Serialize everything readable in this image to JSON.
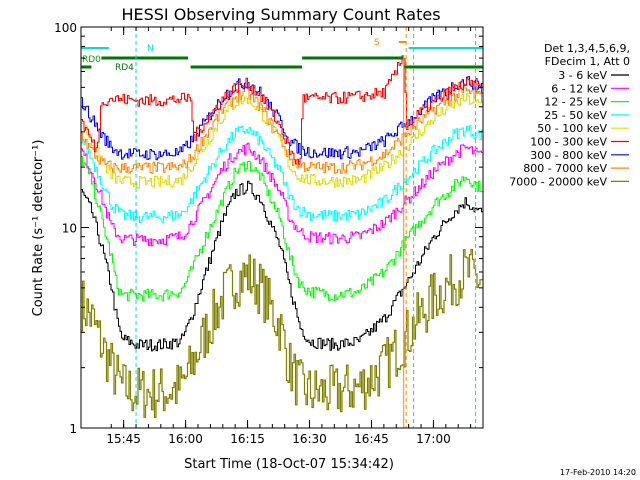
{
  "chart_data": {
    "type": "line",
    "title": "HESSI Observing Summary Count Rates",
    "xlabel": "Start Time (18-Oct-07 15:34:42)",
    "ylabel": "Count Rate (s⁻¹ detector⁻¹)",
    "x_unit": "UT minutes",
    "xlim": [
      15.5779,
      17.2
    ],
    "ylim": [
      1,
      100
    ],
    "y_scale": "log",
    "x_ticks": [
      {
        "x": 15.75,
        "label": "15:45"
      },
      {
        "x": 16.0,
        "label": "16:00"
      },
      {
        "x": 16.25,
        "label": "16:15"
      },
      {
        "x": 16.5,
        "label": "16:30"
      },
      {
        "x": 16.75,
        "label": "16:45"
      },
      {
        "x": 17.0,
        "label": "17:00"
      }
    ],
    "y_ticks": [
      {
        "y": 1,
        "label": "1"
      },
      {
        "y": 10,
        "label": "10"
      },
      {
        "y": 100,
        "label": "100"
      }
    ],
    "legend_header": [
      "Det 1,3,4,5,6,9,",
      "FDecim 1, Att 0"
    ],
    "legend_placement": "right",
    "timestamp": "17-Feb-2010 14:20",
    "flags": [
      {
        "label": "RD0",
        "color": "#00aa00"
      },
      {
        "label": "RD4",
        "color": "#007700"
      },
      {
        "label": "N",
        "color": "#00dddd"
      },
      {
        "label": "S",
        "color": "#ff8800"
      }
    ],
    "series": [
      {
        "name": "3 - 6 keV",
        "color": "#000000",
        "points": [
          [
            15.58,
            15
          ],
          [
            15.62,
            12
          ],
          [
            15.66,
            8
          ],
          [
            15.7,
            5
          ],
          [
            15.72,
            3.5
          ],
          [
            15.74,
            2.8
          ],
          [
            15.8,
            2.6
          ],
          [
            15.9,
            2.6
          ],
          [
            15.98,
            2.7
          ],
          [
            16.02,
            3.5
          ],
          [
            16.08,
            6
          ],
          [
            16.15,
            11
          ],
          [
            16.2,
            15
          ],
          [
            16.25,
            16
          ],
          [
            16.3,
            14
          ],
          [
            16.38,
            8
          ],
          [
            16.42,
            5
          ],
          [
            16.46,
            3.2
          ],
          [
            16.5,
            2.7
          ],
          [
            16.6,
            2.6
          ],
          [
            16.7,
            2.7
          ],
          [
            16.8,
            3.5
          ],
          [
            16.9,
            5.5
          ],
          [
            17.0,
            9
          ],
          [
            17.08,
            12
          ],
          [
            17.13,
            13.5
          ],
          [
            17.18,
            12
          ]
        ]
      },
      {
        "name": "6 - 12 keV",
        "color": "#ff00ff",
        "points": [
          [
            15.58,
            24
          ],
          [
            15.62,
            19
          ],
          [
            15.66,
            14
          ],
          [
            15.7,
            10
          ],
          [
            15.74,
            8.8
          ],
          [
            15.8,
            8.7
          ],
          [
            15.9,
            8.7
          ],
          [
            15.98,
            9
          ],
          [
            16.02,
            10.5
          ],
          [
            16.08,
            14
          ],
          [
            16.15,
            20
          ],
          [
            16.2,
            23.5
          ],
          [
            16.25,
            25
          ],
          [
            16.3,
            22
          ],
          [
            16.38,
            15
          ],
          [
            16.42,
            11
          ],
          [
            16.46,
            9.5
          ],
          [
            16.5,
            9
          ],
          [
            16.6,
            8.8
          ],
          [
            16.7,
            9
          ],
          [
            16.8,
            10.5
          ],
          [
            16.9,
            14
          ],
          [
            17.0,
            19
          ],
          [
            17.08,
            23
          ],
          [
            17.13,
            25
          ],
          [
            17.18,
            23
          ]
        ]
      },
      {
        "name": "12 - 25 keV",
        "color": "#00ff00",
        "points": [
          [
            15.58,
            22
          ],
          [
            15.62,
            17
          ],
          [
            15.66,
            11
          ],
          [
            15.7,
            7
          ],
          [
            15.72,
            5.2
          ],
          [
            15.74,
            4.6
          ],
          [
            15.8,
            4.6
          ],
          [
            15.9,
            4.6
          ],
          [
            15.98,
            4.8
          ],
          [
            16.02,
            6
          ],
          [
            16.08,
            9
          ],
          [
            16.15,
            14
          ],
          [
            16.2,
            19
          ],
          [
            16.25,
            21
          ],
          [
            16.3,
            18
          ],
          [
            16.38,
            11
          ],
          [
            16.42,
            7
          ],
          [
            16.46,
            5.2
          ],
          [
            16.5,
            4.8
          ],
          [
            16.6,
            4.6
          ],
          [
            16.7,
            4.8
          ],
          [
            16.8,
            6
          ],
          [
            16.9,
            9
          ],
          [
            17.0,
            13
          ],
          [
            17.08,
            16
          ],
          [
            17.13,
            18
          ],
          [
            17.18,
            16
          ]
        ]
      },
      {
        "name": "25 - 50 keV",
        "color": "#00ffff",
        "points": [
          [
            15.58,
            28
          ],
          [
            15.62,
            22
          ],
          [
            15.66,
            17
          ],
          [
            15.7,
            13
          ],
          [
            15.74,
            11.5
          ],
          [
            15.8,
            11.3
          ],
          [
            15.9,
            11.3
          ],
          [
            15.98,
            11.6
          ],
          [
            16.02,
            13.5
          ],
          [
            16.08,
            18
          ],
          [
            16.15,
            25
          ],
          [
            16.2,
            29.5
          ],
          [
            16.25,
            31
          ],
          [
            16.3,
            27
          ],
          [
            16.38,
            19
          ],
          [
            16.42,
            14
          ],
          [
            16.46,
            12.2
          ],
          [
            16.5,
            11.6
          ],
          [
            16.6,
            11.4
          ],
          [
            16.7,
            11.6
          ],
          [
            16.8,
            13.5
          ],
          [
            16.9,
            18
          ],
          [
            17.0,
            24
          ],
          [
            17.08,
            29
          ],
          [
            17.13,
            31
          ],
          [
            17.18,
            29
          ]
        ]
      },
      {
        "name": "50 - 100 keV",
        "color": "#dddd00",
        "points": [
          [
            15.58,
            34
          ],
          [
            15.62,
            27
          ],
          [
            15.66,
            22
          ],
          [
            15.7,
            18
          ],
          [
            15.74,
            17
          ],
          [
            15.8,
            16.8
          ],
          [
            15.9,
            16.8
          ],
          [
            15.98,
            17.2
          ],
          [
            16.02,
            20
          ],
          [
            16.08,
            26
          ],
          [
            16.15,
            36
          ],
          [
            16.2,
            42
          ],
          [
            16.25,
            44
          ],
          [
            16.3,
            38
          ],
          [
            16.38,
            27
          ],
          [
            16.42,
            20
          ],
          [
            16.46,
            17.8
          ],
          [
            16.5,
            17.2
          ],
          [
            16.6,
            17
          ],
          [
            16.7,
            17.2
          ],
          [
            16.8,
            20
          ],
          [
            16.9,
            26
          ],
          [
            17.0,
            35
          ],
          [
            17.08,
            41
          ],
          [
            17.13,
            44
          ],
          [
            17.18,
            41
          ]
        ]
      },
      {
        "name": "100 - 300 keV",
        "color": "#ff0000",
        "points": [
          [
            15.58,
            34
          ],
          [
            15.64,
            24
          ],
          [
            15.66,
            43
          ],
          [
            15.7,
            44
          ],
          [
            15.8,
            43
          ],
          [
            15.9,
            43
          ],
          [
            16.02,
            44
          ],
          [
            16.03,
            28
          ],
          [
            16.08,
            34
          ],
          [
            16.15,
            44
          ],
          [
            16.2,
            50
          ],
          [
            16.25,
            52
          ],
          [
            16.3,
            46
          ],
          [
            16.38,
            32
          ],
          [
            16.42,
            24
          ],
          [
            16.46,
            20
          ],
          [
            16.47,
            44
          ],
          [
            16.5,
            44
          ],
          [
            16.6,
            44
          ],
          [
            16.7,
            45
          ],
          [
            16.8,
            47
          ],
          [
            16.85,
            60
          ],
          [
            16.88,
            74
          ],
          [
            16.89,
            32
          ],
          [
            16.95,
            38
          ],
          [
            17.0,
            42
          ],
          [
            17.08,
            49
          ],
          [
            17.13,
            52
          ],
          [
            17.18,
            50
          ]
        ]
      },
      {
        "name": "300 - 800 keV",
        "color": "#0000ff",
        "points": [
          [
            15.58,
            42
          ],
          [
            15.62,
            35
          ],
          [
            15.66,
            29
          ],
          [
            15.7,
            25
          ],
          [
            15.74,
            23.5
          ],
          [
            15.8,
            23.2
          ],
          [
            15.9,
            23.2
          ],
          [
            15.98,
            23.6
          ],
          [
            16.02,
            27
          ],
          [
            16.08,
            34
          ],
          [
            16.15,
            45
          ],
          [
            16.2,
            51
          ],
          [
            16.25,
            53
          ],
          [
            16.3,
            47
          ],
          [
            16.38,
            34
          ],
          [
            16.42,
            27
          ],
          [
            16.46,
            24.5
          ],
          [
            16.5,
            23.8
          ],
          [
            16.6,
            23.5
          ],
          [
            16.7,
            23.8
          ],
          [
            16.8,
            27
          ],
          [
            16.9,
            34
          ],
          [
            17.0,
            44
          ],
          [
            17.08,
            51
          ],
          [
            17.13,
            54
          ],
          [
            17.18,
            51
          ]
        ]
      },
      {
        "name": "800 - 7000 keV",
        "color": "#ff8800",
        "points": [
          [
            15.58,
            29
          ],
          [
            15.62,
            24
          ],
          [
            15.66,
            21
          ],
          [
            15.7,
            20
          ],
          [
            15.74,
            19.8
          ],
          [
            15.8,
            19.8
          ],
          [
            15.9,
            19.8
          ],
          [
            15.98,
            20
          ],
          [
            16.02,
            22
          ],
          [
            16.08,
            29
          ],
          [
            16.15,
            39
          ],
          [
            16.2,
            45
          ],
          [
            16.25,
            47
          ],
          [
            16.3,
            40
          ],
          [
            16.38,
            28
          ],
          [
            16.42,
            22
          ],
          [
            16.46,
            20.5
          ],
          [
            16.5,
            20
          ],
          [
            16.6,
            19.8
          ],
          [
            16.7,
            20.5
          ],
          [
            16.8,
            23
          ],
          [
            16.9,
            30
          ],
          [
            17.0,
            39
          ],
          [
            17.08,
            45
          ],
          [
            17.13,
            48
          ],
          [
            17.18,
            45
          ]
        ]
      },
      {
        "name": "7000 - 20000 keV",
        "color": "#808000",
        "points": [
          [
            15.58,
            4.2
          ],
          [
            15.62,
            3.5
          ],
          [
            15.66,
            2.6
          ],
          [
            15.7,
            2
          ],
          [
            15.74,
            1.6
          ],
          [
            15.8,
            1.5
          ],
          [
            15.9,
            1.5
          ],
          [
            15.98,
            1.6
          ],
          [
            16.02,
            2
          ],
          [
            16.08,
            3
          ],
          [
            16.15,
            4.5
          ],
          [
            16.2,
            5.5
          ],
          [
            16.25,
            5.8
          ],
          [
            16.3,
            5
          ],
          [
            16.38,
            3.2
          ],
          [
            16.42,
            2
          ],
          [
            16.46,
            1.6
          ],
          [
            16.5,
            1.5
          ],
          [
            16.6,
            1.5
          ],
          [
            16.7,
            1.6
          ],
          [
            16.8,
            2
          ],
          [
            16.9,
            3
          ],
          [
            17.0,
            4.5
          ],
          [
            17.08,
            5.5
          ],
          [
            17.13,
            6
          ],
          [
            17.18,
            5.5
          ]
        ]
      }
    ]
  }
}
